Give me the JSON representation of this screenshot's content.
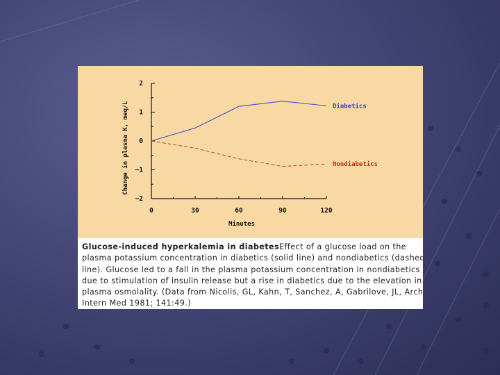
{
  "chart_data": {
    "type": "line",
    "title": "",
    "xlabel": "Minutes",
    "ylabel": "Change in plasma K, meq/L",
    "xlim": [
      0,
      120
    ],
    "ylim": [
      -2,
      2
    ],
    "xticks": [
      0,
      30,
      60,
      90,
      120
    ],
    "yticks": [
      2,
      1,
      0,
      -1,
      -2
    ],
    "ytick_labels": [
      "2",
      "1",
      "0",
      "−1",
      "−2"
    ],
    "grid": false,
    "legend": "inline labels at right end of lines",
    "series": [
      {
        "name": "Diabetics",
        "color": "#4a4ad8",
        "style": "solid",
        "x": [
          0,
          30,
          60,
          90,
          120
        ],
        "y": [
          0,
          0.45,
          1.2,
          1.38,
          1.22
        ]
      },
      {
        "name": "Nondiabetics",
        "color": "#c05020",
        "style": "dashed",
        "x": [
          0,
          30,
          60,
          90,
          120
        ],
        "y": [
          0,
          -0.25,
          -0.62,
          -0.88,
          -0.8
        ]
      }
    ]
  },
  "caption": {
    "title": "Glucose-induced hyperkalemia in diabetes",
    "lines": [
      "Effect of a glucose load on the",
      "plasma potassium concentration in diabetics (solid line) and nondiabetics (dashed",
      "line). Glucose led to a fall in the plasma potassium concentration in nondiabetics",
      "due to stimulation of insulin release but a rise in diabetics due to the elevation in",
      "plasma osmolality. (Data from Nicolis, GL, Kahn, T, Sanchez, A, Gabrilove, JL, Arch",
      "Intern Med 1981; 141:49.)"
    ]
  },
  "colors": {
    "background": "#3f4270",
    "plot_panel": "#f8d9a4",
    "axis": "#111111"
  }
}
